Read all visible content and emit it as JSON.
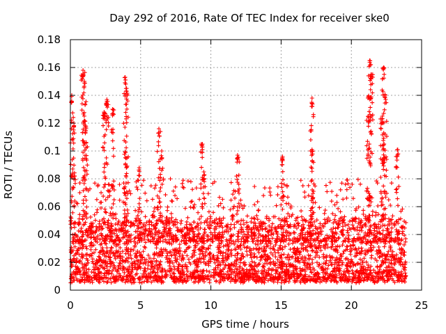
{
  "chart_data": {
    "type": "scatter",
    "title": "Day 292 of 2016, Rate Of TEC Index for receiver ske0",
    "xlabel": "GPS time / hours",
    "ylabel": "ROTI / TECUs",
    "xlim": [
      0,
      25
    ],
    "ylim": [
      0,
      0.18
    ],
    "xticks": [
      "0",
      "5",
      "10",
      "15",
      "20",
      "25"
    ],
    "yticks": [
      "0",
      "0.02",
      "0.04",
      "0.06",
      "0.08",
      "0.1",
      "0.12",
      "0.14",
      "0.16",
      "0.18"
    ],
    "grid": true,
    "marker": "plus",
    "series": [
      {
        "name": "ROTI",
        "color": "#ff0000",
        "time_range_hours": [
          0,
          23.9
        ],
        "baseline_band": [
          0.005,
          0.05
        ],
        "peaks": [
          {
            "x": 0.1,
            "y": 0.14
          },
          {
            "x": 0.25,
            "y": 0.12
          },
          {
            "x": 0.9,
            "y": 0.158
          },
          {
            "x": 1.0,
            "y": 0.15
          },
          {
            "x": 1.1,
            "y": 0.118
          },
          {
            "x": 2.4,
            "y": 0.128
          },
          {
            "x": 2.6,
            "y": 0.137
          },
          {
            "x": 3.0,
            "y": 0.13
          },
          {
            "x": 3.9,
            "y": 0.153
          },
          {
            "x": 4.0,
            "y": 0.145
          },
          {
            "x": 4.9,
            "y": 0.088
          },
          {
            "x": 6.3,
            "y": 0.116
          },
          {
            "x": 6.5,
            "y": 0.1
          },
          {
            "x": 9.4,
            "y": 0.105
          },
          {
            "x": 9.5,
            "y": 0.085
          },
          {
            "x": 11.9,
            "y": 0.097
          },
          {
            "x": 15.1,
            "y": 0.096
          },
          {
            "x": 17.2,
            "y": 0.138
          },
          {
            "x": 17.2,
            "y": 0.101
          },
          {
            "x": 21.3,
            "y": 0.165
          },
          {
            "x": 21.4,
            "y": 0.155
          },
          {
            "x": 21.2,
            "y": 0.125
          },
          {
            "x": 22.3,
            "y": 0.16
          },
          {
            "x": 22.4,
            "y": 0.14
          },
          {
            "x": 22.2,
            "y": 0.125
          },
          {
            "x": 23.3,
            "y": 0.101
          }
        ]
      }
    ]
  }
}
